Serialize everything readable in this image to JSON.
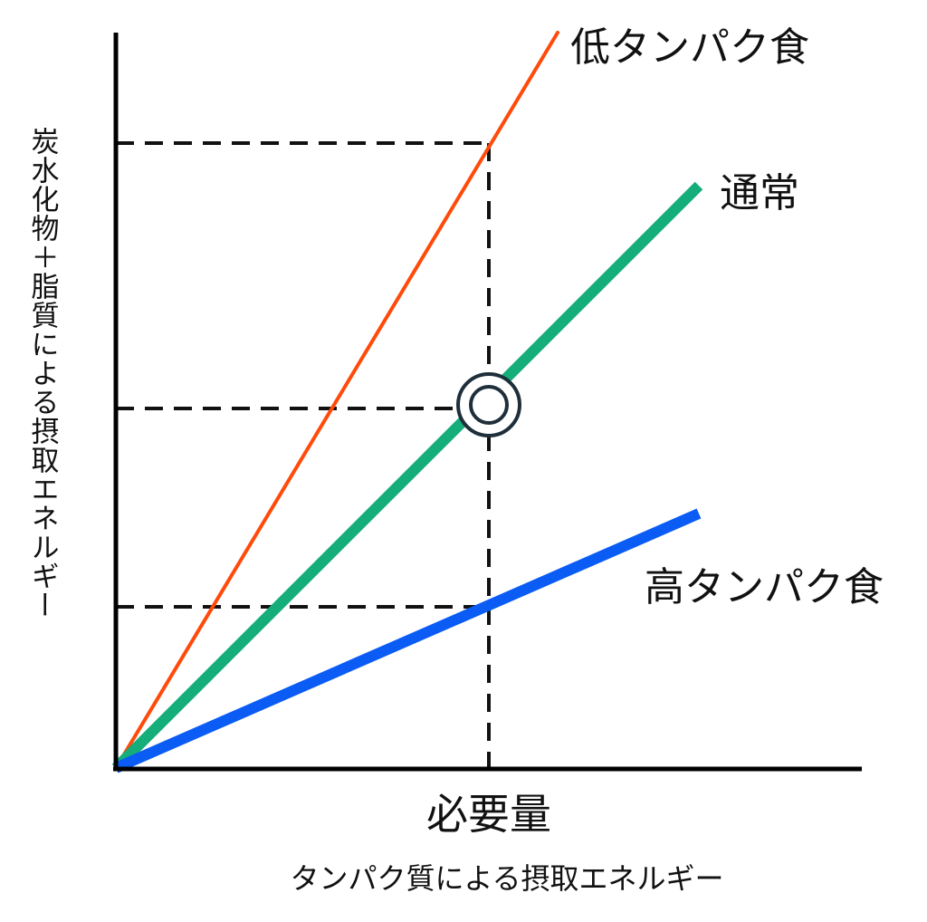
{
  "diagram": {
    "y_axis_label": "炭水化物＋脂質による摂取エネルギー",
    "x_axis_label": "タンパク質による摂取エネルギー",
    "x_marker_label": "必要量",
    "lines": [
      {
        "label": "低タンパク食",
        "color": "#ff4a0a"
      },
      {
        "label": "通常",
        "color": "#15ad7a"
      },
      {
        "label": "高タンパク食",
        "color": "#0a5cf5"
      }
    ],
    "marker_symbol": "double-circle",
    "guide_color": "#111111",
    "axis_color": "#000000"
  }
}
